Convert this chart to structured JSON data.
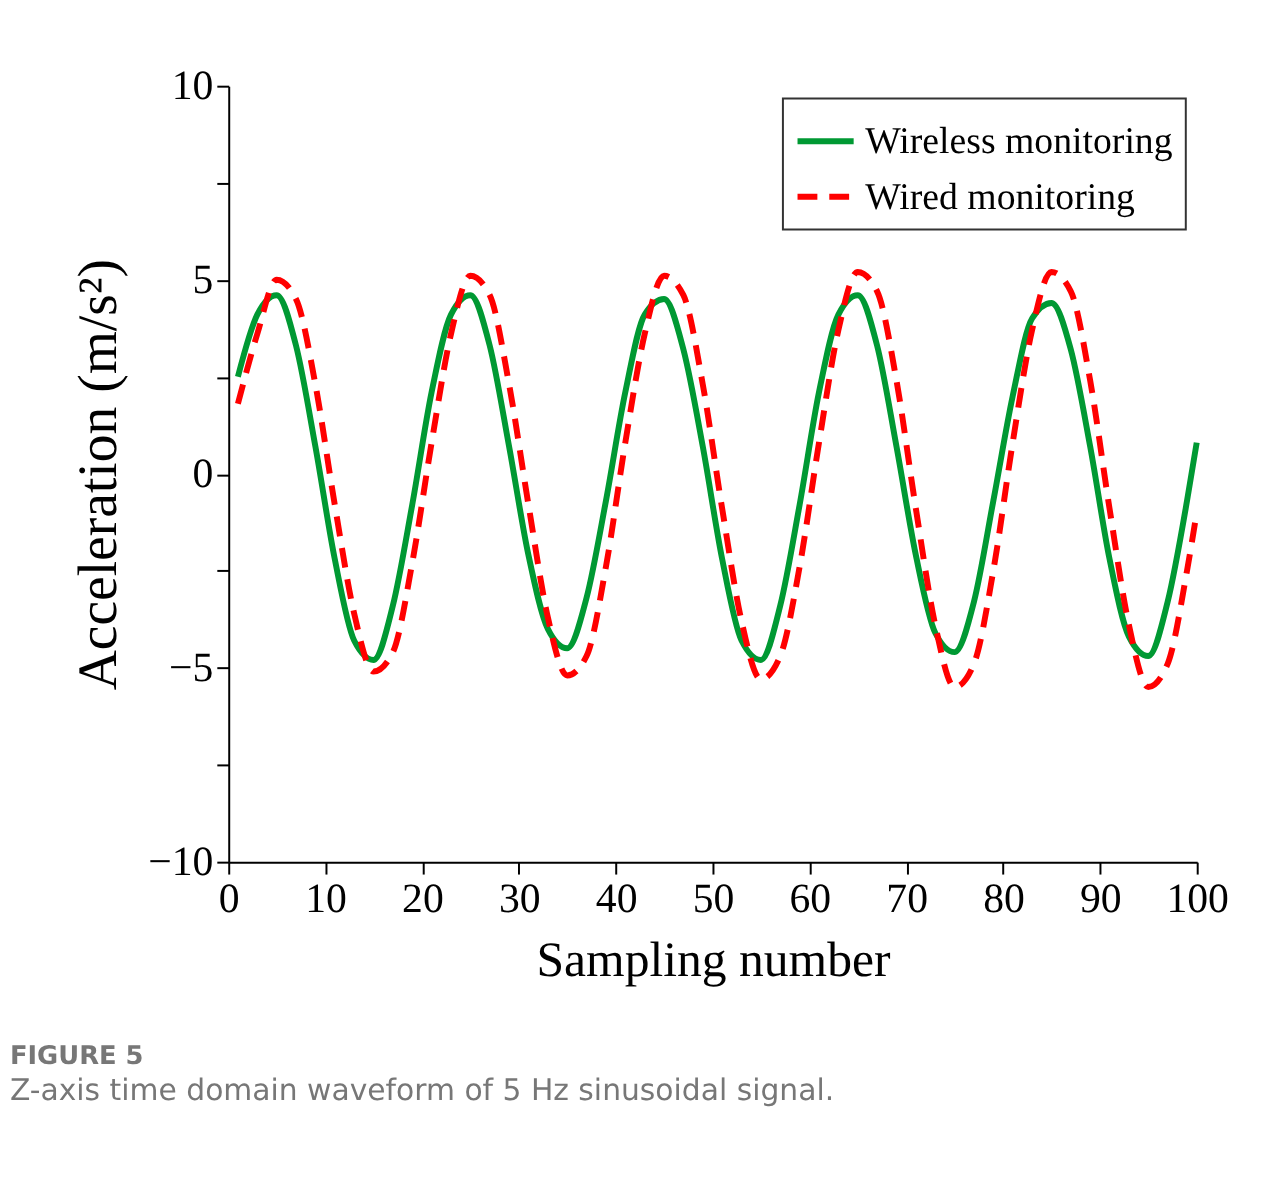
{
  "chart_data": {
    "type": "line",
    "xlabel": "Sampling number",
    "ylabel": "Acceleration (m/s²)",
    "xlim": [
      0,
      100
    ],
    "xticks": [
      0,
      10,
      20,
      30,
      40,
      50,
      60,
      70,
      80,
      90,
      100
    ],
    "ylim": [
      -10,
      10
    ],
    "yticks": [
      -10,
      {
        "value": -7.5,
        "label": null
      },
      -5,
      {
        "value": -2.5,
        "label": null
      },
      0,
      {
        "value": 2.5,
        "label": null
      },
      5,
      {
        "value": 7.5,
        "label": null
      },
      10
    ],
    "grid": false,
    "legend": "top right",
    "marker": "none",
    "annotations": [
      "FIGURE 5",
      "Z-axis time domain waveform of 5 Hz sinusoidal signal."
    ],
    "series": [
      {
        "name": "Wireless monitoring",
        "color": "#009933",
        "line_style": "solid",
        "x": [
          1,
          3,
          5,
          7,
          9,
          11,
          13,
          15,
          17,
          19,
          21,
          23,
          25,
          27,
          29,
          31,
          33,
          35,
          37,
          39,
          41,
          43,
          45,
          47,
          49,
          51,
          53,
          55,
          57,
          59,
          61,
          63,
          65,
          67,
          69,
          71,
          73,
          75,
          77,
          79,
          81,
          83,
          85,
          87,
          89,
          91,
          93,
          95,
          97,
          99,
          100
        ],
        "values": [
          2.5,
          4.1,
          4.6,
          3.3,
          0.7,
          -2.2,
          -4.3,
          -4.8,
          -3.4,
          -0.8,
          2.1,
          4.1,
          4.6,
          3.3,
          0.7,
          -2.1,
          -4.0,
          -4.5,
          -3.2,
          -0.7,
          2.1,
          4.1,
          4.5,
          3.2,
          0.7,
          -2.2,
          -4.3,
          -4.8,
          -3.4,
          -0.8,
          2.1,
          4.1,
          4.6,
          3.3,
          0.7,
          -2.1,
          -4.1,
          -4.6,
          -3.3,
          -0.7,
          2.0,
          4.0,
          4.4,
          3.2,
          0.7,
          -2.2,
          -4.2,
          -4.7,
          -3.3,
          -0.7,
          0.8
        ]
      },
      {
        "name": "Wired monitoring",
        "color": "#ff0000",
        "line_style": "dashed",
        "x": [
          1,
          3,
          5,
          7,
          9,
          11,
          13,
          15,
          17,
          19,
          21,
          23,
          25,
          27,
          29,
          31,
          33,
          35,
          37,
          39,
          41,
          43,
          45,
          47,
          49,
          51,
          53,
          55,
          57,
          59,
          61,
          63,
          65,
          67,
          69,
          71,
          73,
          75,
          77,
          79,
          81,
          83,
          85,
          87,
          89,
          91,
          93,
          95,
          97,
          99,
          100
        ],
        "values": [
          1.8,
          3.6,
          5.0,
          4.5,
          2.3,
          -0.8,
          -3.6,
          -5.1,
          -4.6,
          -2.3,
          0.8,
          3.6,
          5.1,
          4.6,
          2.3,
          -0.8,
          -3.7,
          -5.2,
          -4.7,
          -2.4,
          0.8,
          3.6,
          5.1,
          4.6,
          2.3,
          -0.9,
          -3.8,
          -5.3,
          -4.7,
          -2.4,
          0.8,
          3.7,
          5.2,
          4.7,
          2.4,
          -0.9,
          -3.9,
          -5.5,
          -4.9,
          -2.5,
          0.8,
          3.7,
          5.2,
          4.7,
          2.4,
          -0.9,
          -3.9,
          -5.5,
          -4.9,
          -2.5,
          -1.0
        ]
      }
    ]
  }
}
